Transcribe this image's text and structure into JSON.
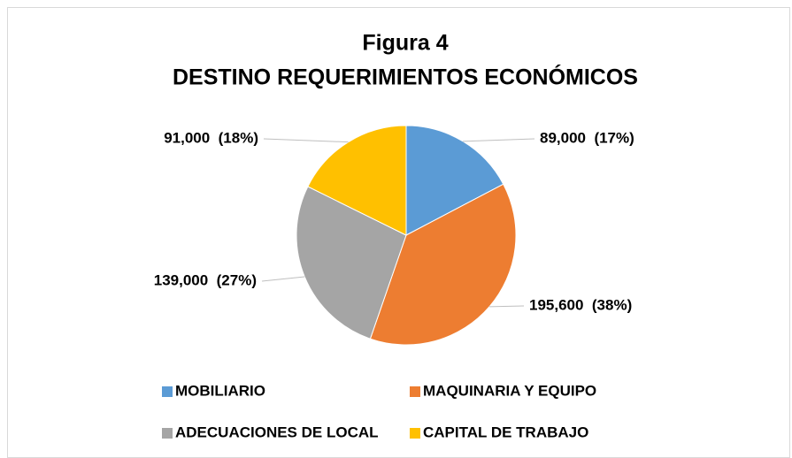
{
  "chart_data": {
    "type": "pie",
    "title": "Figura 4",
    "subtitle": "DESTINO REQUERIMIENTOS ECONÓMICOS",
    "categories": [
      "MOBILIARIO",
      "MAQUINARIA Y EQUIPO",
      "ADECUACIONES DE LOCAL",
      "CAPITAL DE TRABAJO"
    ],
    "values": [
      89000,
      195600,
      139000,
      91000
    ],
    "value_labels": [
      "89,000  (17%)",
      "195,600  (38%)",
      "139,000  (27%)",
      "91,000  (18%)"
    ],
    "colors": [
      "#5b9bd5",
      "#ed7d31",
      "#a5a5a5",
      "#ffc000"
    ],
    "legend": "bottom"
  }
}
